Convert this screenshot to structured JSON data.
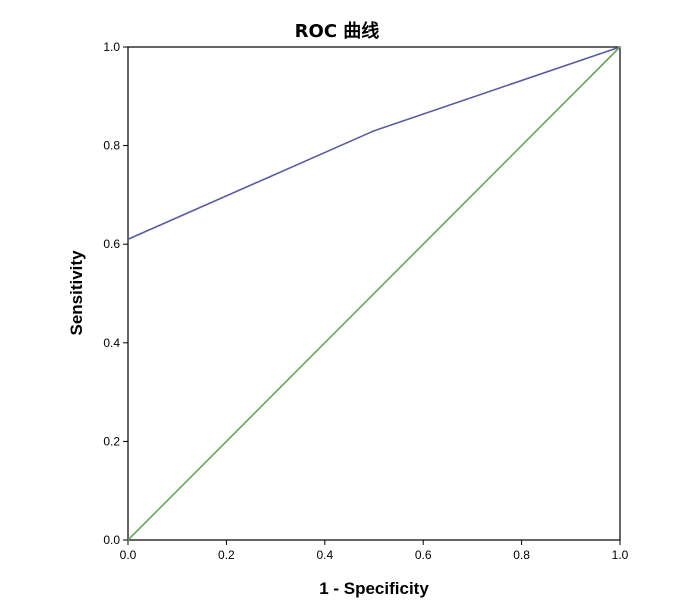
{
  "chart_data": {
    "type": "line",
    "title": "ROC 曲线",
    "xlabel": "1 - Specificity",
    "ylabel": "Sensitivity",
    "xlim": [
      0,
      1
    ],
    "ylim": [
      0,
      1
    ],
    "xticks": [
      "0.0",
      "0.2",
      "0.4",
      "0.6",
      "0.8",
      "1.0"
    ],
    "yticks": [
      "0.0",
      "0.2",
      "0.4",
      "0.6",
      "0.8",
      "1.0"
    ],
    "grid": false,
    "series": [
      {
        "color": "#5a5aa0",
        "points": [
          [
            0.0,
            0.61
          ],
          [
            0.5,
            0.83
          ],
          [
            1.0,
            1.0
          ]
        ]
      },
      {
        "color": "#6aa55a",
        "points": [
          [
            0.0,
            0.0
          ],
          [
            1.0,
            1.0
          ]
        ]
      }
    ]
  }
}
